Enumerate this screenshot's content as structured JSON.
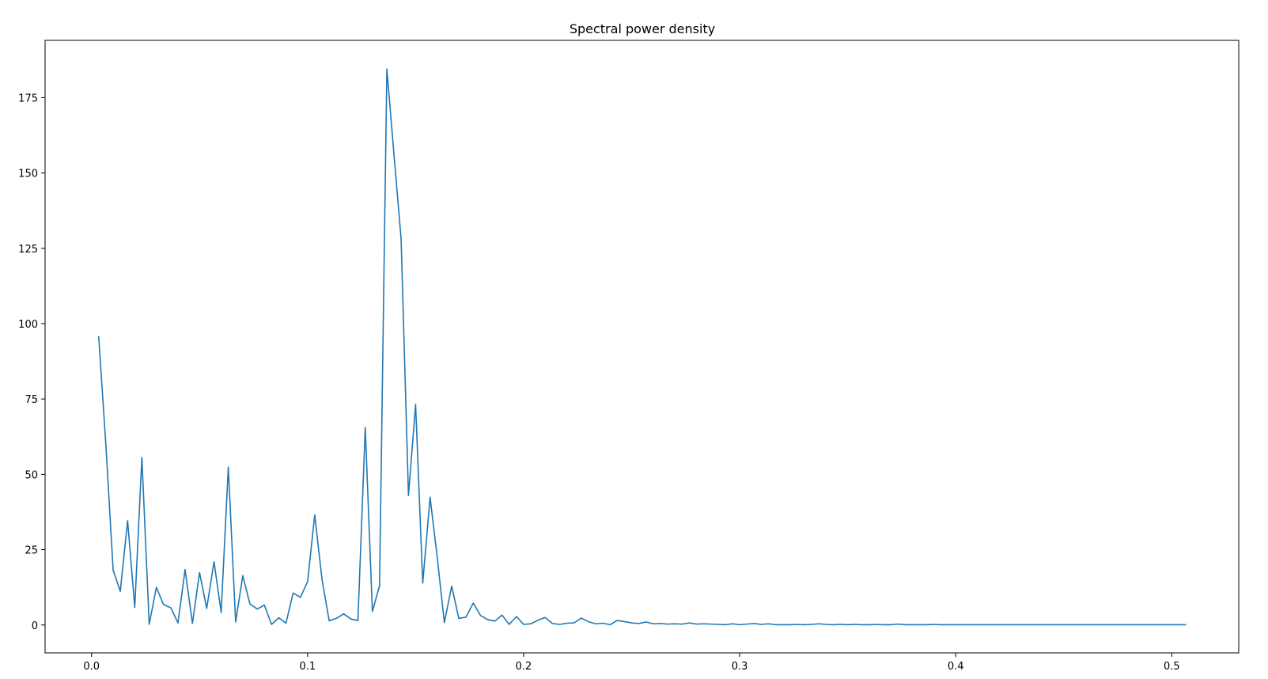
{
  "chart_data": {
    "type": "line",
    "title": "Spectral power density",
    "xlabel": "",
    "ylabel": "",
    "xlim": [
      -0.0215,
      0.531
    ],
    "ylim": [
      -9.25,
      194.0
    ],
    "xticks": [
      0.0,
      0.1,
      0.2,
      0.3,
      0.4,
      0.5
    ],
    "xtick_labels": [
      "0.0",
      "0.1",
      "0.2",
      "0.3",
      "0.4",
      "0.5"
    ],
    "yticks": [
      0,
      25,
      50,
      75,
      100,
      125,
      150,
      175
    ],
    "ytick_labels": [
      "0",
      "25",
      "50",
      "75",
      "100",
      "125",
      "150",
      "175"
    ],
    "grid": false,
    "series": [
      {
        "color": "#1f77b4",
        "x": [
          0.0033,
          0.0067,
          0.01,
          0.0133,
          0.0167,
          0.02,
          0.0233,
          0.0267,
          0.03,
          0.0333,
          0.0367,
          0.04,
          0.0433,
          0.0467,
          0.05,
          0.0533,
          0.0567,
          0.06,
          0.0633,
          0.0667,
          0.07,
          0.0733,
          0.0767,
          0.08,
          0.0833,
          0.0867,
          0.09,
          0.0933,
          0.0967,
          0.1,
          0.1033,
          0.1067,
          0.11,
          0.1133,
          0.1167,
          0.12,
          0.1233,
          0.1267,
          0.13,
          0.1333,
          0.1367,
          0.14,
          0.1433,
          0.1467,
          0.15,
          0.1533,
          0.1567,
          0.16,
          0.1633,
          0.1667,
          0.17,
          0.1733,
          0.1767,
          0.18,
          0.1833,
          0.1867,
          0.19,
          0.1933,
          0.1967,
          0.2,
          0.2033,
          0.2067,
          0.21,
          0.2133,
          0.2167,
          0.22,
          0.2233,
          0.2267,
          0.23,
          0.2333,
          0.2367,
          0.24,
          0.2433,
          0.2467,
          0.25,
          0.2533,
          0.2567,
          0.26,
          0.2633,
          0.2667,
          0.27,
          0.2733,
          0.2767,
          0.28,
          0.2833,
          0.2867,
          0.29,
          0.2933,
          0.2967,
          0.3,
          0.3033,
          0.3067,
          0.31,
          0.3133,
          0.3167,
          0.32,
          0.3233,
          0.3267,
          0.33,
          0.3333,
          0.3367,
          0.34,
          0.3433,
          0.3467,
          0.35,
          0.3533,
          0.3567,
          0.36,
          0.3633,
          0.3667,
          0.37,
          0.3733,
          0.3767,
          0.38,
          0.3833,
          0.3867,
          0.39,
          0.3933,
          0.3967,
          0.4,
          0.4033,
          0.4067,
          0.41,
          0.4133,
          0.4167,
          0.42,
          0.4233,
          0.4267,
          0.43,
          0.4333,
          0.4367,
          0.44,
          0.4433,
          0.4467,
          0.45,
          0.4533,
          0.4567,
          0.46,
          0.4633,
          0.4667,
          0.47,
          0.4733,
          0.4767,
          0.48,
          0.4833,
          0.4867,
          0.49,
          0.4933,
          0.4967,
          0.5,
          0.5033,
          0.5067
        ],
        "values": [
          95.8,
          59.0,
          18.2,
          11.2,
          34.6,
          5.8,
          55.6,
          0.2,
          12.5,
          6.8,
          5.7,
          0.7,
          18.4,
          0.5,
          17.4,
          5.5,
          21.0,
          4.2,
          52.4,
          1.0,
          16.4,
          7.0,
          5.3,
          6.6,
          0.2,
          2.4,
          0.6,
          10.6,
          9.2,
          14.4,
          36.5,
          15.0,
          1.4,
          2.2,
          3.7,
          2.0,
          1.5,
          65.5,
          4.5,
          13.0,
          184.5,
          156.0,
          128.0,
          43.0,
          73.2,
          13.9,
          42.4,
          22.5,
          0.8,
          12.9,
          2.2,
          2.6,
          7.3,
          3.2,
          1.8,
          1.3,
          3.3,
          0.2,
          2.8,
          0.2,
          0.4,
          1.6,
          2.5,
          0.5,
          0.2,
          0.6,
          0.7,
          2.3,
          1.1,
          0.4,
          0.6,
          0.1,
          1.5,
          1.1,
          0.7,
          0.5,
          1.0,
          0.4,
          0.5,
          0.3,
          0.4,
          0.3,
          0.7,
          0.3,
          0.4,
          0.3,
          0.2,
          0.1,
          0.4,
          0.1,
          0.3,
          0.5,
          0.2,
          0.4,
          0.1,
          0.1,
          0.1,
          0.2,
          0.1,
          0.2,
          0.4,
          0.2,
          0.1,
          0.2,
          0.1,
          0.2,
          0.1,
          0.1,
          0.2,
          0.1,
          0.1,
          0.3,
          0.1,
          0.1,
          0.1,
          0.1,
          0.2,
          0.1,
          0.1,
          0.1,
          0.1,
          0.1,
          0.1,
          0.1,
          0.1,
          0.1,
          0.1,
          0.1,
          0.1,
          0.1,
          0.1,
          0.1,
          0.1,
          0.1,
          0.1,
          0.1,
          0.1,
          0.1,
          0.1,
          0.1,
          0.1,
          0.1,
          0.1,
          0.1,
          0.1,
          0.1,
          0.1,
          0.1,
          0.1,
          0.1,
          0.1,
          0.1
        ]
      }
    ]
  }
}
